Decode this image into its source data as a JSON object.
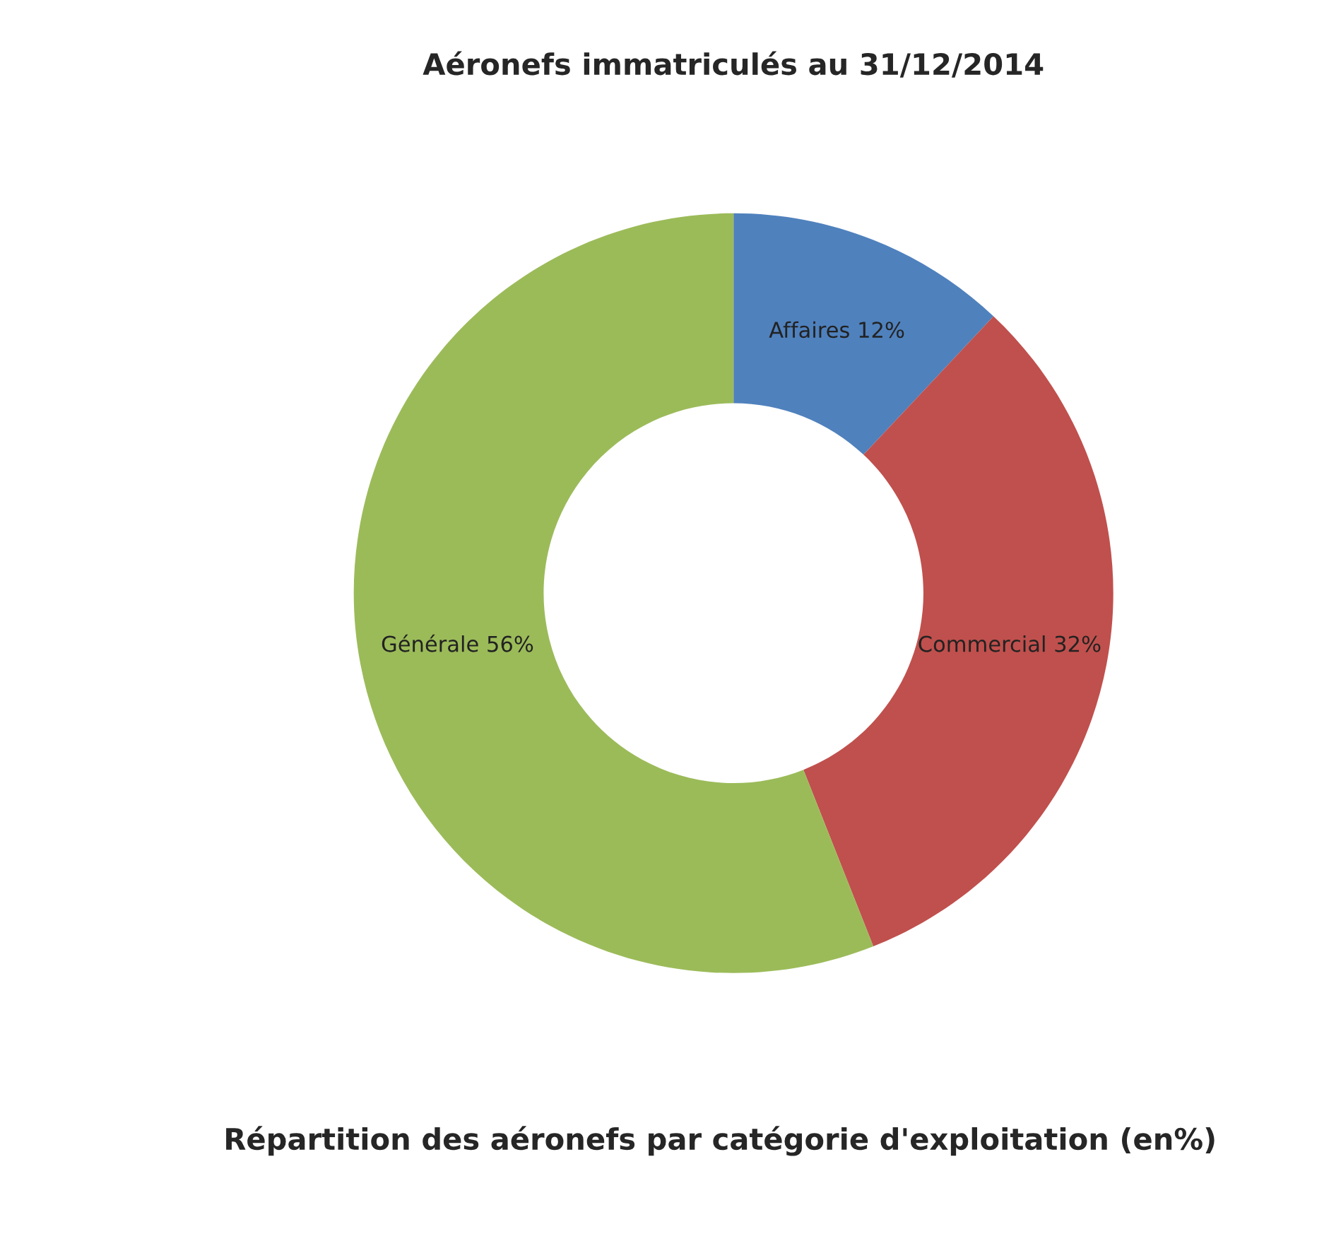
{
  "chart_data": {
    "type": "donut",
    "title": "Aéronefs immatriculés au 31/12/2014",
    "categories": [
      "Affaires",
      "Commercial",
      "Générale"
    ],
    "values": [
      12,
      32,
      56
    ],
    "colors": [
      "#4f81bd",
      "#c0504d",
      "#9bbb59"
    ],
    "value_labels": [
      "12%",
      "32%",
      "56%"
    ],
    "annotations": [
      "Répartition des aéronefs par catégorie d'exploitation (en%)"
    ],
    "legend": false
  }
}
